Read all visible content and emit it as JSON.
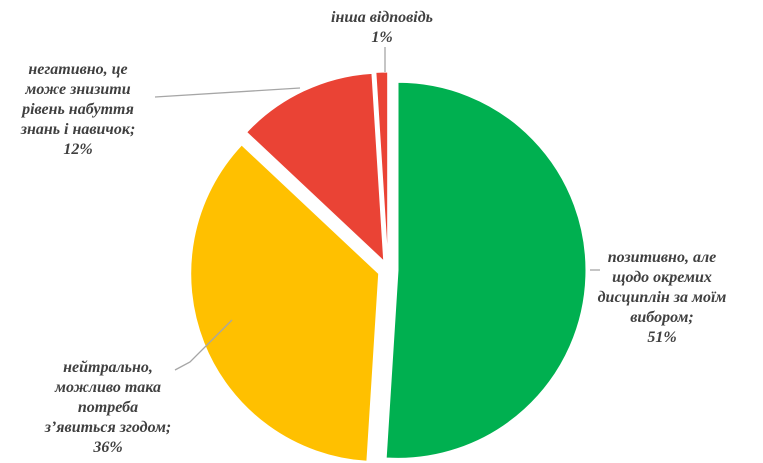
{
  "chart_data": {
    "type": "pie",
    "exploded": true,
    "series": [
      {
        "name": "позитивно, але щодо окремих дисциплін за моїм вибором",
        "value": 51,
        "color": "#00b050",
        "label_lines": [
          "позитивно, але",
          "щодо окремих",
          "дисциплін за моїм",
          "вибором;",
          "51%"
        ]
      },
      {
        "name": "нейтрально, можливо така потреба з’явиться згодом",
        "value": 36,
        "color": "#ffc000",
        "label_lines": [
          "нейтрально,",
          "можливо така",
          "потреба",
          "з’явиться згодом;",
          "36%"
        ]
      },
      {
        "name": "негативно, це може знизити рівень набуття знань і навичок",
        "value": 12,
        "color": "#ea4335",
        "label_lines": [
          "негативно, це",
          "може знизити",
          "рівень набуття",
          "знань і навичок;",
          "12%"
        ]
      },
      {
        "name": "інша відповідь",
        "value": 1,
        "color": "#ea4335",
        "label_lines": [
          "інша відповідь",
          "1%"
        ]
      }
    ]
  }
}
